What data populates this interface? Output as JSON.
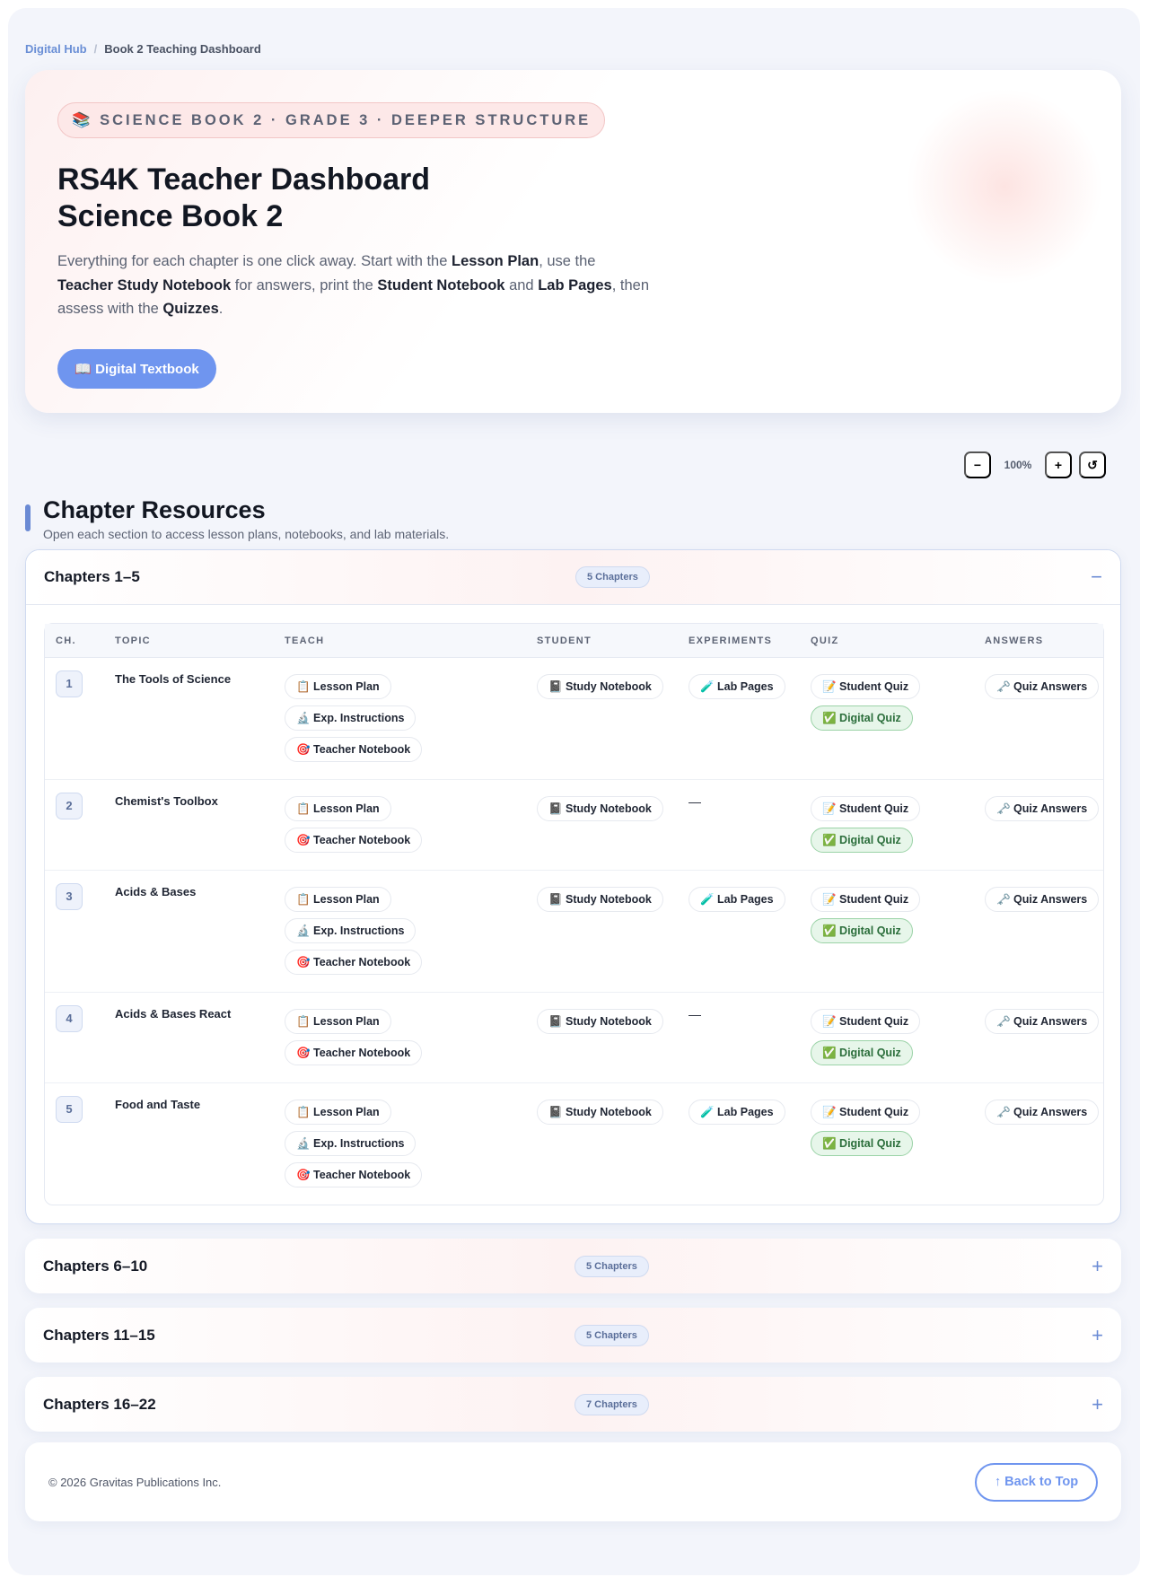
{
  "breadcrumb": [
    "Digital Hub",
    "Book 2 Teaching Dashboard"
  ],
  "hero": {
    "badge": "📚 SCIENCE BOOK 2 · GRADE 3 · DEEPER STRUCTURE",
    "title": [
      "RS4K Teacher Dashboard",
      "Science Book 2"
    ],
    "description": [
      "Everything for each chapter is one click away. Start with the ",
      "Lesson Plan",
      ", use the ",
      "Teacher Study Notebook",
      " for answers, print the ",
      "Student Notebook",
      " and ",
      "Lab Pages",
      ", then assess with the ",
      "Quizzes",
      "."
    ],
    "button": "📖 Digital Textbook"
  },
  "zoom": [
    "−",
    "100%",
    "+",
    "↺"
  ],
  "section": {
    "title": "Chapter Resources",
    "subtitle": "Open each section to access lesson plans, notebooks, and lab materials."
  },
  "groups": [
    {
      "title": "Chapters 1–5",
      "count": "5 Chapters",
      "toggle": "−",
      "columns": [
        "CH.",
        "TOPIC",
        "TEACH",
        "STUDENT",
        "EXPERIMENTS",
        "QUIZ",
        "ANSWERS"
      ],
      "rows": [
        {
          "num": "1",
          "topic": "The Tools of Science",
          "teach": [
            "📋 Lesson Plan",
            "🔬 Exp. Instructions",
            "🎯 Teacher Notebook"
          ],
          "student": [
            "📓 Study Notebook"
          ],
          "experiments": [
            "🧪 Lab Pages"
          ],
          "quiz": [
            "📝 Student Quiz",
            "✅ Digital Quiz"
          ],
          "answers": [
            "🗝️ Quiz Answers"
          ]
        },
        {
          "num": "2",
          "topic": "Chemist's Toolbox",
          "teach": [
            "📋 Lesson Plan",
            "🎯 Teacher Notebook"
          ],
          "student": [
            "📓 Study Notebook"
          ],
          "experiments": "—",
          "quiz": [
            "📝 Student Quiz",
            "✅ Digital Quiz"
          ],
          "answers": [
            "🗝️ Quiz Answers"
          ]
        },
        {
          "num": "3",
          "topic": "Acids & Bases",
          "teach": [
            "📋 Lesson Plan",
            "🔬 Exp. Instructions",
            "🎯 Teacher Notebook"
          ],
          "student": [
            "📓 Study Notebook"
          ],
          "experiments": [
            "🧪 Lab Pages"
          ],
          "quiz": [
            "📝 Student Quiz",
            "✅ Digital Quiz"
          ],
          "answers": [
            "🗝️ Quiz Answers"
          ]
        },
        {
          "num": "4",
          "topic": "Acids & Bases React",
          "teach": [
            "📋 Lesson Plan",
            "🎯 Teacher Notebook"
          ],
          "student": [
            "📓 Study Notebook"
          ],
          "experiments": "—",
          "quiz": [
            "📝 Student Quiz",
            "✅ Digital Quiz"
          ],
          "answers": [
            "🗝️ Quiz Answers"
          ]
        },
        {
          "num": "5",
          "topic": "Food and Taste",
          "teach": [
            "📋 Lesson Plan",
            "🔬 Exp. Instructions",
            "🎯 Teacher Notebook"
          ],
          "student": [
            "📓 Study Notebook"
          ],
          "experiments": [
            "🧪 Lab Pages"
          ],
          "quiz": [
            "📝 Student Quiz",
            "✅ Digital Quiz"
          ],
          "answers": [
            "🗝️ Quiz Answers"
          ]
        }
      ]
    },
    {
      "title": "Chapters 6–10",
      "count": "5 Chapters",
      "toggle": "+"
    },
    {
      "title": "Chapters 11–15",
      "count": "5 Chapters",
      "toggle": "+"
    },
    {
      "title": "Chapters 16–22",
      "count": "7 Chapters",
      "toggle": "+"
    }
  ],
  "footer": {
    "copyright": "© 2026 Gravitas Publications Inc.",
    "button": "↑ Back to Top"
  }
}
